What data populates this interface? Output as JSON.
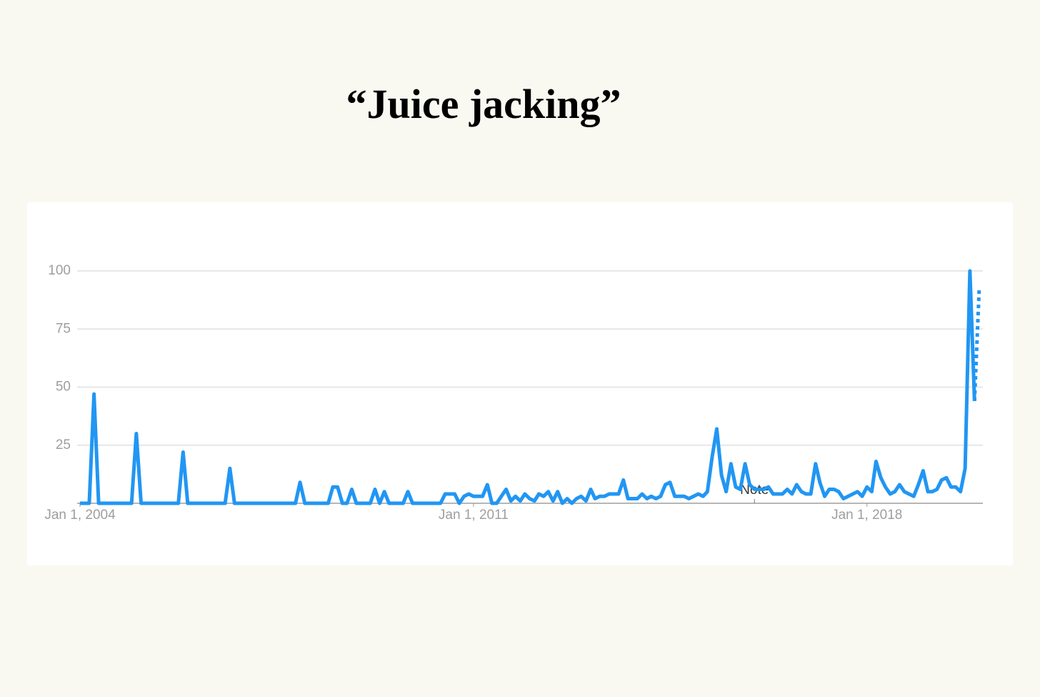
{
  "chart_data": {
    "type": "line",
    "title": "“Juice jacking”",
    "x": [
      "2004-01-01",
      "2004-02-01",
      "2004-03-01",
      "2004-04-01",
      "2004-05-01",
      "2004-06-01",
      "2004-07-01",
      "2004-08-01",
      "2004-09-01",
      "2004-10-01",
      "2004-11-01",
      "2004-12-01",
      "2005-01-01",
      "2005-02-01",
      "2005-03-01",
      "2005-04-01",
      "2005-05-01",
      "2005-06-01",
      "2005-07-01",
      "2005-08-01",
      "2005-09-01",
      "2005-10-01",
      "2005-11-01",
      "2005-12-01",
      "2006-01-01",
      "2006-02-01",
      "2006-03-01",
      "2006-04-01",
      "2006-05-01",
      "2006-06-01",
      "2006-07-01",
      "2006-08-01",
      "2006-09-01",
      "2006-10-01",
      "2006-11-01",
      "2006-12-01",
      "2007-01-01",
      "2007-02-01",
      "2007-03-01",
      "2007-04-01",
      "2007-05-01",
      "2007-06-01",
      "2007-07-01",
      "2007-08-01",
      "2007-09-01",
      "2007-10-01",
      "2007-11-01",
      "2007-12-01",
      "2008-01-01",
      "2008-02-01",
      "2008-03-01",
      "2008-04-01",
      "2008-05-01",
      "2008-06-01",
      "2008-07-01",
      "2008-08-01",
      "2008-09-01",
      "2008-10-01",
      "2008-11-01",
      "2008-12-01",
      "2009-01-01",
      "2009-02-01",
      "2009-03-01",
      "2009-04-01",
      "2009-05-01",
      "2009-06-01",
      "2009-07-01",
      "2009-08-01",
      "2009-09-01",
      "2009-10-01",
      "2009-11-01",
      "2009-12-01",
      "2010-01-01",
      "2010-02-01",
      "2010-03-01",
      "2010-04-01",
      "2010-05-01",
      "2010-06-01",
      "2010-07-01",
      "2010-08-01",
      "2010-09-01",
      "2010-10-01",
      "2010-11-01",
      "2010-12-01",
      "2011-01-01",
      "2011-02-01",
      "2011-03-01",
      "2011-04-01",
      "2011-05-01",
      "2011-06-01",
      "2011-07-01",
      "2011-08-01",
      "2011-09-01",
      "2011-10-01",
      "2011-11-01",
      "2011-12-01",
      "2012-01-01",
      "2012-02-01",
      "2012-03-01",
      "2012-04-01",
      "2012-05-01",
      "2012-06-01",
      "2012-07-01",
      "2012-08-01",
      "2012-09-01",
      "2012-10-01",
      "2012-11-01",
      "2012-12-01",
      "2013-01-01",
      "2013-02-01",
      "2013-03-01",
      "2013-04-01",
      "2013-05-01",
      "2013-06-01",
      "2013-07-01",
      "2013-08-01",
      "2013-09-01",
      "2013-10-01",
      "2013-11-01",
      "2013-12-01",
      "2014-01-01",
      "2014-02-01",
      "2014-03-01",
      "2014-04-01",
      "2014-05-01",
      "2014-06-01",
      "2014-07-01",
      "2014-08-01",
      "2014-09-01",
      "2014-10-01",
      "2014-11-01",
      "2014-12-01",
      "2015-01-01",
      "2015-02-01",
      "2015-03-01",
      "2015-04-01",
      "2015-05-01",
      "2015-06-01",
      "2015-07-01",
      "2015-08-01",
      "2015-09-01",
      "2015-10-01",
      "2015-11-01",
      "2015-12-01",
      "2016-01-01",
      "2016-02-01",
      "2016-03-01",
      "2016-04-01",
      "2016-05-01",
      "2016-06-01",
      "2016-07-01",
      "2016-08-01",
      "2016-09-01",
      "2016-10-01",
      "2016-11-01",
      "2016-12-01",
      "2017-01-01",
      "2017-02-01",
      "2017-03-01",
      "2017-04-01",
      "2017-05-01",
      "2017-06-01",
      "2017-07-01",
      "2017-08-01",
      "2017-09-01",
      "2017-10-01",
      "2017-11-01",
      "2017-12-01",
      "2018-01-01",
      "2018-02-01",
      "2018-03-01",
      "2018-04-01",
      "2018-05-01",
      "2018-06-01",
      "2018-07-01",
      "2018-08-01",
      "2018-09-01",
      "2018-10-01",
      "2018-11-01",
      "2018-12-01",
      "2019-01-01",
      "2019-02-01",
      "2019-03-01",
      "2019-04-01",
      "2019-05-01",
      "2019-06-01",
      "2019-07-01",
      "2019-08-01",
      "2019-09-01",
      "2019-10-01",
      "2019-11-01",
      "2019-12-01",
      "2020-01-01"
    ],
    "values": [
      0,
      0,
      0,
      47,
      0,
      0,
      0,
      0,
      0,
      0,
      0,
      0,
      30,
      0,
      0,
      0,
      0,
      0,
      0,
      0,
      0,
      0,
      22,
      0,
      0,
      0,
      0,
      0,
      0,
      0,
      0,
      0,
      15,
      0,
      0,
      0,
      0,
      0,
      0,
      0,
      0,
      0,
      0,
      0,
      0,
      0,
      0,
      9,
      0,
      0,
      0,
      0,
      0,
      0,
      7,
      7,
      0,
      0,
      6,
      0,
      0,
      0,
      0,
      6,
      0,
      5,
      0,
      0,
      0,
      0,
      5,
      0,
      0,
      0,
      0,
      0,
      0,
      0,
      4,
      4,
      4,
      0,
      3,
      4,
      3,
      3,
      3,
      8,
      0,
      0,
      3,
      6,
      1,
      3,
      1,
      4,
      2,
      1,
      4,
      3,
      5,
      1,
      5,
      0,
      2,
      0,
      2,
      3,
      1,
      6,
      2,
      3,
      3,
      4,
      4,
      4,
      10,
      2,
      2,
      2,
      4,
      2,
      3,
      2,
      3,
      8,
      9,
      3,
      3,
      3,
      2,
      3,
      4,
      3,
      5,
      20,
      32,
      12,
      5,
      17,
      7,
      6,
      17,
      8,
      6,
      6,
      6,
      7,
      4,
      4,
      4,
      6,
      4,
      8,
      5,
      4,
      4,
      17,
      9,
      3,
      6,
      6,
      5,
      2,
      3,
      4,
      5,
      3,
      7,
      5,
      18,
      11,
      7,
      4,
      5,
      8,
      5,
      4,
      3,
      8,
      14,
      5,
      5,
      6,
      10,
      11,
      7,
      7,
      5,
      15,
      100,
      44,
      93
    ],
    "color": "#2196f3",
    "last_segment_dashed": true,
    "xlim": [
      "2004-01-01",
      "2020-01-01"
    ],
    "xticks": [
      {
        "value": "2004-01-01",
        "label": "Jan 1, 2004"
      },
      {
        "value": "2011-01-01",
        "label": "Jan 1, 2011"
      },
      {
        "value": "2018-01-01",
        "label": "Jan 1, 2018"
      }
    ],
    "ylim": [
      0,
      100
    ],
    "yticks": [
      25,
      50,
      75,
      100
    ],
    "grid": true,
    "annotations": [
      {
        "text": "Note",
        "x": "2016-01-01"
      }
    ]
  }
}
